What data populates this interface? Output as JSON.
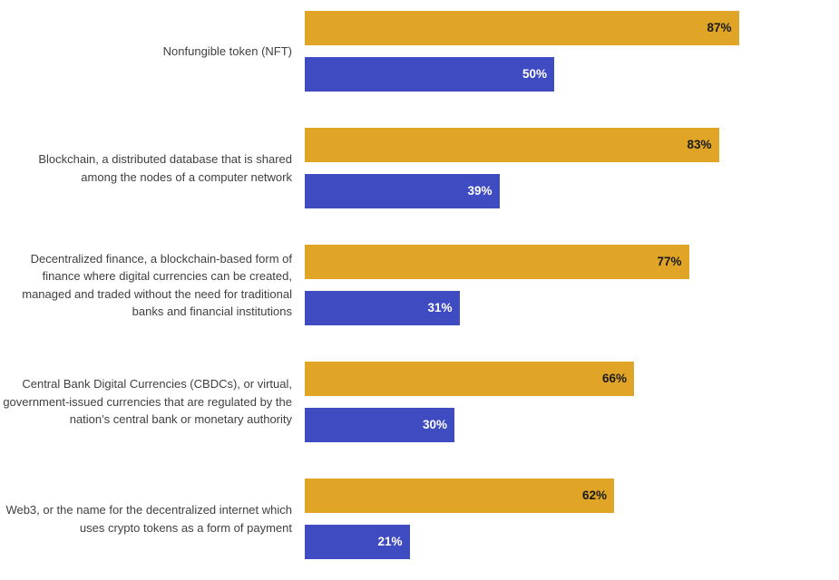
{
  "chart_data": {
    "type": "bar",
    "orientation": "horizontal",
    "title": "",
    "xlabel": "",
    "ylabel": "",
    "xlim": [
      0,
      100
    ],
    "grid": false,
    "legend": "none",
    "value_suffix": "%",
    "categories": [
      "Nonfungible token (NFT)",
      "Blockchain, a distributed database that is shared among the nodes of a computer network",
      "Decentralized finance, a blockchain-based form of finance where digital currencies can be created, managed and traded without the need for traditional banks and financial institutions",
      "Central Bank Digital Currencies (CBDCs), or virtual, government-issued currencies that are regulated by the nation's central bank or monetary authority",
      "Web3, or the name for the decentralized internet which uses crypto tokens as a form of payment"
    ],
    "series": [
      {
        "name": "gold",
        "color": "#E0A526",
        "label_color": "#1a1a1a",
        "values": [
          87,
          83,
          77,
          66,
          62
        ]
      },
      {
        "name": "blue",
        "color": "#3F4BC1",
        "label_color": "#ffffff",
        "values": [
          50,
          39,
          31,
          30,
          21
        ]
      }
    ]
  }
}
